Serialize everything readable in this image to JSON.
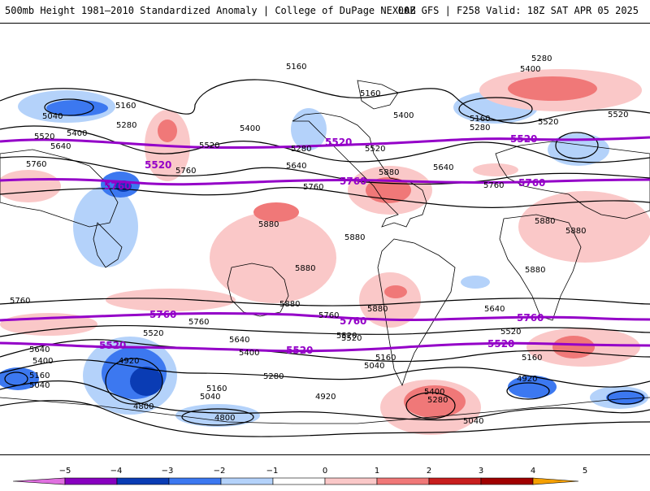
{
  "header": {
    "title": "500mb Height 1981–2010 Standardized Anomaly | College of DuPage NEXLAB",
    "run_info": "00Z GFS | F258 Valid: 18Z SAT APR 05 2025"
  },
  "contour_labels": [
    {
      "text": "5160"
    },
    {
      "text": "5040"
    },
    {
      "text": "5160"
    },
    {
      "text": "5280"
    },
    {
      "text": "5400"
    },
    {
      "text": "5520"
    },
    {
      "text": "5640"
    },
    {
      "text": "5760"
    },
    {
      "text": "5760"
    },
    {
      "text": "5400"
    },
    {
      "text": "5520"
    },
    {
      "text": "5280"
    },
    {
      "text": "5160"
    },
    {
      "text": "5400"
    },
    {
      "text": "5520"
    },
    {
      "text": "5640"
    },
    {
      "text": "5880"
    },
    {
      "text": "5760"
    },
    {
      "text": "5280"
    },
    {
      "text": "5400"
    },
    {
      "text": "5160"
    },
    {
      "text": "5280"
    },
    {
      "text": "5520"
    },
    {
      "text": "5520"
    },
    {
      "text": "5640"
    },
    {
      "text": "5760"
    },
    {
      "text": "5880"
    },
    {
      "text": "5880"
    },
    {
      "text": "5880"
    },
    {
      "text": "5880"
    },
    {
      "text": "5880"
    },
    {
      "text": "5880"
    },
    {
      "text": "5880"
    },
    {
      "text": "5880"
    },
    {
      "text": "5760"
    },
    {
      "text": "5760"
    },
    {
      "text": "5760"
    },
    {
      "text": "5640"
    },
    {
      "text": "5520"
    },
    {
      "text": "5640"
    },
    {
      "text": "5400"
    },
    {
      "text": "5520"
    },
    {
      "text": "5280"
    },
    {
      "text": "5640"
    },
    {
      "text": "5400"
    },
    {
      "text": "5160"
    },
    {
      "text": "5040"
    },
    {
      "text": "4920"
    },
    {
      "text": "4800"
    },
    {
      "text": "5160"
    },
    {
      "text": "5040"
    },
    {
      "text": "4800"
    },
    {
      "text": "4920"
    },
    {
      "text": "5520"
    },
    {
      "text": "5160"
    },
    {
      "text": "5040"
    },
    {
      "text": "5400"
    },
    {
      "text": "5280"
    },
    {
      "text": "5040"
    },
    {
      "text": "5520"
    },
    {
      "text": "5160"
    },
    {
      "text": "4920"
    }
  ],
  "highlight_labels": [
    {
      "text": "5520"
    },
    {
      "text": "5760"
    },
    {
      "text": "5520"
    },
    {
      "text": "5760"
    },
    {
      "text": "5520"
    },
    {
      "text": "5760"
    },
    {
      "text": "5760"
    },
    {
      "text": "5520"
    },
    {
      "text": "5760"
    },
    {
      "text": "5520"
    },
    {
      "text": "5520"
    },
    {
      "text": "5760"
    }
  ],
  "colors": {
    "neg5": "#e070e0",
    "neg4": "#8800c0",
    "neg3": "#0a3cb4",
    "neg2": "#3c78f0",
    "neg1": "#b4d2fa",
    "pos1": "#fac8c8",
    "pos2": "#f07878",
    "pos3": "#c81e1e",
    "pos4": "#a00000",
    "pos5": "#f5a000",
    "highlight_contour": "#9400c8",
    "contour": "#000000"
  },
  "colorbar": {
    "ticks": [
      "−5",
      "−4",
      "−3",
      "−2",
      "−1",
      "0",
      "1",
      "2",
      "3",
      "4",
      "5"
    ]
  }
}
